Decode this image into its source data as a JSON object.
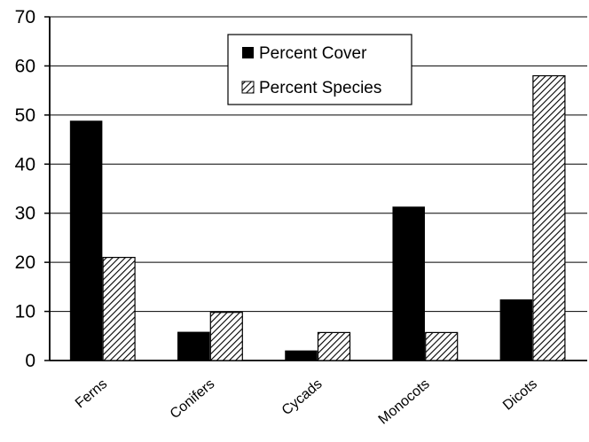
{
  "chart_data": {
    "type": "bar",
    "categories": [
      "Ferns",
      "Conifers",
      "Cycads",
      "Monocots",
      "Dicots"
    ],
    "series": [
      {
        "name": "Percent Cover",
        "values": [
          48.8,
          5.8,
          2.0,
          31.3,
          12.4
        ],
        "fill": "solid-black",
        "color": "#000000"
      },
      {
        "name": "Percent Species",
        "values": [
          21.0,
          9.8,
          5.7,
          5.7,
          58.0
        ],
        "fill": "diagonal-hatch",
        "color": "#000000"
      }
    ],
    "title": "",
    "xlabel": "",
    "ylabel": "",
    "ylim": [
      0,
      70
    ],
    "yticks": [
      0,
      10,
      20,
      30,
      40,
      50,
      60,
      70
    ],
    "grid": "horizontal",
    "legend_position": "top-center"
  }
}
